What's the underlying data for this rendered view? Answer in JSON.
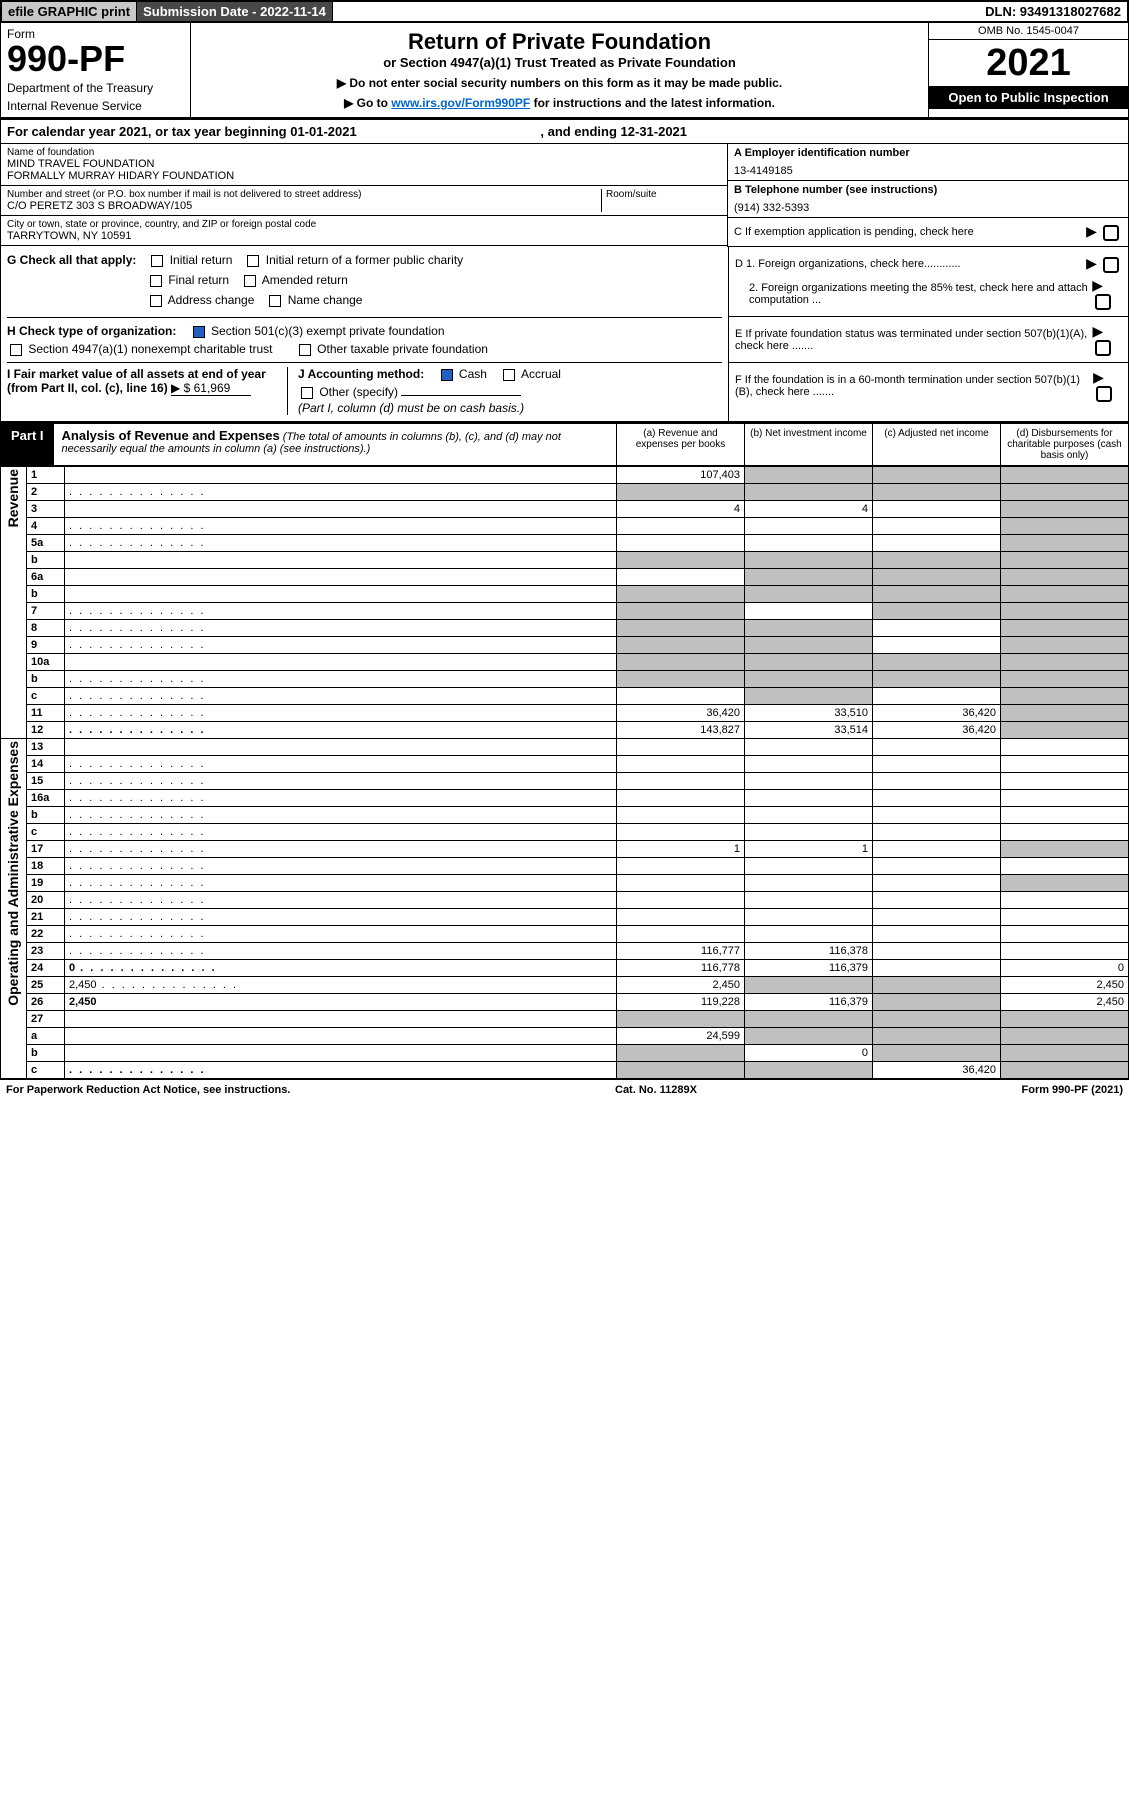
{
  "topbar": {
    "efile": "efile GRAPHIC print",
    "submission": "Submission Date - 2022-11-14",
    "dln": "DLN: 93491318027682"
  },
  "header": {
    "form_label": "Form",
    "form_no": "990-PF",
    "dept1": "Department of the Treasury",
    "dept2": "Internal Revenue Service",
    "title": "Return of Private Foundation",
    "subtitle": "or Section 4947(a)(1) Trust Treated as Private Foundation",
    "note1": "▶ Do not enter social security numbers on this form as it may be made public.",
    "note2_a": "▶ Go to ",
    "note2_link": "www.irs.gov/Form990PF",
    "note2_b": " for instructions and the latest information.",
    "omb": "OMB No. 1545-0047",
    "year": "2021",
    "open": "Open to Public Inspection"
  },
  "calyear": {
    "a": "For calendar year 2021, or tax year beginning 01-01-2021",
    "b": ", and ending 12-31-2021"
  },
  "info": {
    "name_label": "Name of foundation",
    "name1": "MIND TRAVEL FOUNDATION",
    "name2": "FORMALLY MURRAY HIDARY FOUNDATION",
    "addr_label": "Number and street (or P.O. box number if mail is not delivered to street address)",
    "addr": "C/O PERETZ 303 S BROADWAY/105",
    "room_label": "Room/suite",
    "city_label": "City or town, state or province, country, and ZIP or foreign postal code",
    "city": "TARRYTOWN, NY  10591",
    "a_label": "A Employer identification number",
    "a_val": "13-4149185",
    "b_label": "B Telephone number (see instructions)",
    "b_val": "(914) 332-5393",
    "c_label": "C If exemption application is pending, check here",
    "d1": "D 1. Foreign organizations, check here............",
    "d2": "2. Foreign organizations meeting the 85% test, check here and attach computation ...",
    "e": "E  If private foundation status was terminated under section 507(b)(1)(A), check here .......",
    "f": "F  If the foundation is in a 60-month termination under section 507(b)(1)(B), check here .......",
    "g_label": "G Check all that apply:",
    "g_opts": [
      "Initial return",
      "Final return",
      "Address change",
      "Initial return of a former public charity",
      "Amended return",
      "Name change"
    ],
    "h_label": "H Check type of organization:",
    "h_opts": [
      "Section 501(c)(3) exempt private foundation",
      "Section 4947(a)(1) nonexempt charitable trust",
      "Other taxable private foundation"
    ],
    "i_label": "I Fair market value of all assets at end of year (from Part II, col. (c), line 16)",
    "i_val": "▶ $  61,969",
    "j_label": "J Accounting method:",
    "j_cash": "Cash",
    "j_accrual": "Accrual",
    "j_other": "Other (specify)",
    "j_note": "(Part I, column (d) must be on cash basis.)"
  },
  "part1": {
    "tag": "Part I",
    "title": "Analysis of Revenue and Expenses",
    "desc": "(The total of amounts in columns (b), (c), and (d) may not necessarily equal the amounts in column (a) (see instructions).)",
    "col_a": "(a)   Revenue and expenses per books",
    "col_b": "(b)   Net investment income",
    "col_c": "(c)   Adjusted net income",
    "col_d": "(d)   Disbursements for charitable purposes (cash basis only)"
  },
  "sidebars": {
    "rev": "Revenue",
    "oae": "Operating and Administrative Expenses"
  },
  "rows": [
    {
      "n": "1",
      "d": "",
      "a": "107,403",
      "b": "",
      "c": "",
      "grey": [
        "b",
        "c",
        "d"
      ]
    },
    {
      "n": "2",
      "d": "",
      "a": "",
      "b": "",
      "c": "",
      "grey": [
        "a",
        "b",
        "c",
        "d"
      ],
      "dots": true
    },
    {
      "n": "3",
      "d": "",
      "a": "4",
      "b": "4",
      "c": "",
      "grey": [
        "d"
      ]
    },
    {
      "n": "4",
      "d": "",
      "a": "",
      "b": "",
      "c": "",
      "grey": [
        "d"
      ],
      "dots": true
    },
    {
      "n": "5a",
      "d": "",
      "a": "",
      "b": "",
      "c": "",
      "grey": [
        "d"
      ],
      "dots": true
    },
    {
      "n": "b",
      "d": "",
      "a": "",
      "b": "",
      "c": "",
      "grey": [
        "a",
        "b",
        "c",
        "d"
      ]
    },
    {
      "n": "6a",
      "d": "",
      "a": "",
      "b": "",
      "c": "",
      "grey": [
        "b",
        "c",
        "d"
      ]
    },
    {
      "n": "b",
      "d": "",
      "a": "",
      "b": "",
      "c": "",
      "grey": [
        "a",
        "b",
        "c",
        "d"
      ]
    },
    {
      "n": "7",
      "d": "",
      "a": "",
      "b": "",
      "c": "",
      "grey": [
        "a",
        "c",
        "d"
      ],
      "dots": true
    },
    {
      "n": "8",
      "d": "",
      "a": "",
      "b": "",
      "c": "",
      "grey": [
        "a",
        "b",
        "d"
      ],
      "dots": true
    },
    {
      "n": "9",
      "d": "",
      "a": "",
      "b": "",
      "c": "",
      "grey": [
        "a",
        "b",
        "d"
      ],
      "dots": true
    },
    {
      "n": "10a",
      "d": "",
      "a": "",
      "b": "",
      "c": "",
      "grey": [
        "a",
        "b",
        "c",
        "d"
      ]
    },
    {
      "n": "b",
      "d": "",
      "a": "",
      "b": "",
      "c": "",
      "grey": [
        "a",
        "b",
        "c",
        "d"
      ],
      "dots": true
    },
    {
      "n": "c",
      "d": "",
      "a": "",
      "b": "",
      "c": "",
      "grey": [
        "b",
        "d"
      ],
      "dots": true
    },
    {
      "n": "11",
      "d": "",
      "a": "36,420",
      "b": "33,510",
      "c": "36,420",
      "grey": [
        "d"
      ],
      "dots": true
    },
    {
      "n": "12",
      "d": "",
      "a": "143,827",
      "b": "33,514",
      "c": "36,420",
      "grey": [
        "d"
      ],
      "bold": true,
      "dots": true
    },
    {
      "n": "13",
      "d": "",
      "a": "",
      "b": "",
      "c": ""
    },
    {
      "n": "14",
      "d": "",
      "a": "",
      "b": "",
      "c": "",
      "dots": true
    },
    {
      "n": "15",
      "d": "",
      "a": "",
      "b": "",
      "c": "",
      "dots": true
    },
    {
      "n": "16a",
      "d": "",
      "a": "",
      "b": "",
      "c": "",
      "dots": true
    },
    {
      "n": "b",
      "d": "",
      "a": "",
      "b": "",
      "c": "",
      "dots": true
    },
    {
      "n": "c",
      "d": "",
      "a": "",
      "b": "",
      "c": "",
      "dots": true
    },
    {
      "n": "17",
      "d": "",
      "a": "1",
      "b": "1",
      "c": "",
      "grey": [
        "d"
      ],
      "dots": true
    },
    {
      "n": "18",
      "d": "",
      "a": "",
      "b": "",
      "c": "",
      "dots": true
    },
    {
      "n": "19",
      "d": "",
      "a": "",
      "b": "",
      "c": "",
      "grey": [
        "d"
      ],
      "dots": true
    },
    {
      "n": "20",
      "d": "",
      "a": "",
      "b": "",
      "c": "",
      "dots": true
    },
    {
      "n": "21",
      "d": "",
      "a": "",
      "b": "",
      "c": "",
      "dots": true
    },
    {
      "n": "22",
      "d": "",
      "a": "",
      "b": "",
      "c": "",
      "dots": true
    },
    {
      "n": "23",
      "d": "",
      "a": "116,777",
      "b": "116,378",
      "c": "",
      "dots": true
    },
    {
      "n": "24",
      "d": "0",
      "a": "116,778",
      "b": "116,379",
      "c": "",
      "bold": true,
      "dots": true
    },
    {
      "n": "25",
      "d": "2,450",
      "a": "2,450",
      "b": "",
      "c": "",
      "grey": [
        "b",
        "c"
      ],
      "dots": true
    },
    {
      "n": "26",
      "d": "2,450",
      "a": "119,228",
      "b": "116,379",
      "c": "",
      "grey": [
        "c"
      ],
      "bold": true
    },
    {
      "n": "27",
      "d": "",
      "a": "",
      "b": "",
      "c": "",
      "grey": [
        "a",
        "b",
        "c",
        "d"
      ]
    },
    {
      "n": "a",
      "d": "",
      "a": "24,599",
      "b": "",
      "c": "",
      "grey": [
        "b",
        "c",
        "d"
      ],
      "bold": true
    },
    {
      "n": "b",
      "d": "",
      "a": "",
      "b": "0",
      "c": "",
      "grey": [
        "a",
        "c",
        "d"
      ],
      "bold": true
    },
    {
      "n": "c",
      "d": "",
      "a": "",
      "b": "",
      "c": "36,420",
      "grey": [
        "a",
        "b",
        "d"
      ],
      "bold": true,
      "dots": true
    }
  ],
  "footer": {
    "left": "For Paperwork Reduction Act Notice, see instructions.",
    "mid": "Cat. No. 11289X",
    "right": "Form 990-PF (2021)"
  }
}
